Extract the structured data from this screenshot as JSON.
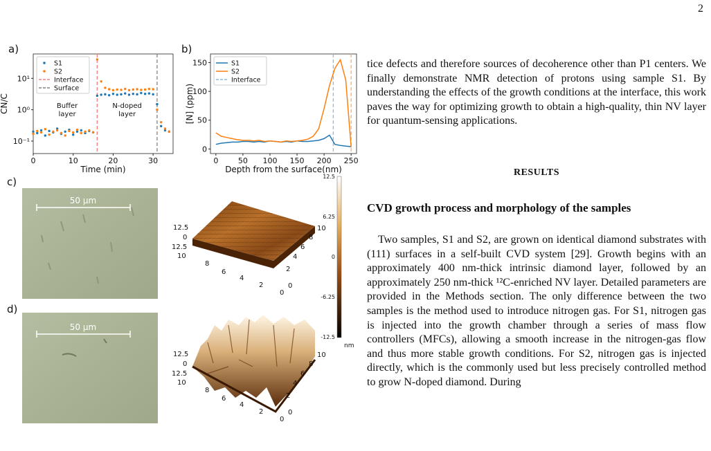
{
  "page_number": "2",
  "chart_data": [
    {
      "type": "scatter",
      "panel": "a)",
      "log_y": true,
      "x": [
        0,
        1,
        2,
        3,
        4,
        5,
        6,
        7,
        8,
        9,
        10,
        11,
        12,
        13,
        14,
        15,
        16,
        17,
        18,
        19,
        20,
        21,
        22,
        23,
        24,
        25,
        26,
        27,
        28,
        29,
        30,
        31,
        32,
        33,
        34
      ],
      "series": [
        {
          "name": "S1",
          "color": "#1f77b4",
          "values": [
            0.2,
            0.18,
            0.22,
            0.15,
            0.21,
            0.19,
            0.25,
            0.17,
            0.2,
            0.23,
            0.16,
            0.2,
            0.22,
            0.18,
            0.21,
            0.19,
            2.8,
            3,
            3.1,
            2.9,
            3.2,
            3,
            3.1,
            3.3,
            3,
            3.2,
            3.1,
            3.4,
            3.2,
            3.3,
            3.1,
            1.5,
            0.3,
            0.22,
            0.2
          ]
        },
        {
          "name": "S2",
          "color": "#ff7f0e",
          "values": [
            0.17,
            0.21,
            0.19,
            0.24,
            0.16,
            0.2,
            0.22,
            0.18,
            0.15,
            0.21,
            0.19,
            0.23,
            0.18,
            0.2,
            0.22,
            0.19,
            40,
            8,
            5,
            4.5,
            4.2,
            4.4,
            4.3,
            4.6,
            4.2,
            4.4,
            4.5,
            4.3,
            4.4,
            4.6,
            4.5,
            1,
            0.4,
            0.25,
            0.2
          ]
        }
      ],
      "vlines": [
        {
          "x": 16,
          "color": "#f08080",
          "name": "Interface"
        },
        {
          "x": 31,
          "color": "#808080",
          "name": "Surface"
        }
      ],
      "annotations": [
        [
          "Buffer",
          "layer"
        ],
        [
          "N-doped",
          "layer"
        ]
      ],
      "xlim": [
        0,
        35
      ],
      "xticks": [
        0,
        10,
        20,
        30
      ],
      "ylim": [
        0.04,
        60
      ],
      "yticks": [
        {
          "value": 0.1,
          "label": "10⁻¹"
        },
        {
          "value": 1,
          "label": "10⁰"
        },
        {
          "value": 10,
          "label": "10¹"
        }
      ],
      "xlabel": "Time (min)",
      "ylabel": "CN/C"
    },
    {
      "type": "line",
      "panel": "b)",
      "x": [
        0,
        10,
        20,
        30,
        40,
        50,
        60,
        70,
        80,
        90,
        100,
        110,
        120,
        130,
        140,
        150,
        160,
        170,
        180,
        190,
        200,
        210,
        220,
        230,
        240,
        250
      ],
      "series": [
        {
          "name": "S1",
          "color": "#1f77b4",
          "values": [
            8,
            10,
            11,
            12,
            12,
            13,
            13,
            12,
            13,
            12,
            14,
            13,
            12,
            13,
            12,
            14,
            13,
            13,
            14,
            15,
            18,
            24,
            8,
            6,
            5,
            4
          ]
        },
        {
          "name": "S2",
          "color": "#ff7f0e",
          "values": [
            28,
            22,
            20,
            18,
            16,
            15,
            15,
            14,
            15,
            13,
            14,
            13,
            12,
            14,
            13,
            14,
            15,
            17,
            22,
            35,
            70,
            110,
            140,
            155,
            120,
            3
          ]
        }
      ],
      "vlines": [
        {
          "x": 217,
          "color": "#8fb8de",
          "name": "Interface"
        },
        {
          "x": 250,
          "color": "#f5b070"
        }
      ],
      "xlim": [
        -10,
        260
      ],
      "xticks": [
        0,
        50,
        100,
        150,
        200,
        250
      ],
      "ylim": [
        -8,
        165
      ],
      "yticks": [
        0,
        50,
        100,
        150
      ],
      "xlabel": "Depth from the surface(nm)",
      "ylabel": "[N] (ppm)"
    }
  ],
  "figure": {
    "c": {
      "panel": "c)",
      "scale_bar": "50 µm",
      "afm_labels": [
        "12.5",
        "0",
        "12.5",
        "10",
        "8",
        "6",
        "4",
        "2",
        "0",
        "10",
        "8",
        "6",
        "4",
        "2",
        "0"
      ]
    },
    "d": {
      "panel": "d)",
      "scale_bar": "50 µm",
      "afm_labels": [
        "12.5",
        "0",
        "12.5",
        "10",
        "8",
        "6",
        "4",
        "2",
        "0",
        "10",
        "8",
        "6",
        "4",
        "2",
        "0"
      ]
    },
    "colorbar": {
      "labels": [
        "12.5",
        "6.25",
        "0",
        "-6.25",
        "-12.5"
      ],
      "unit": "nm"
    }
  },
  "text": {
    "intro": "tice defects and therefore sources of decoherence other than P1 centers. We finally demonstrate NMR detection of protons using sample S1. By understanding the effects of the growth conditions at the interface, this work paves the way for optimizing growth to obtain a high-quality, thin NV layer for quantum-sensing applications.",
    "section": "RESULTS",
    "subsection": "CVD growth process and morphology of the samples",
    "body": "Two samples, S1 and S2, are grown on identical diamond substrates with (111) surfaces in a self-built CVD system [29]. Growth begins with an approximately 400 nm-thick intrinsic diamond layer, followed by an approximately 250 nm-thick ¹²C-enriched NV layer. Detailed parameters are provided in the Methods section. The only difference between the two samples is the method used to introduce nitrogen gas. For S1, nitrogen gas is injected into the growth chamber through a series of mass flow controllers (MFCs), allowing a smooth increase in the nitrogen-gas flow and thus more stable growth conditions. For S2, nitrogen gas is injected directly, which is the commonly used but less precisely controlled method to grow N-doped diamond. During"
  }
}
